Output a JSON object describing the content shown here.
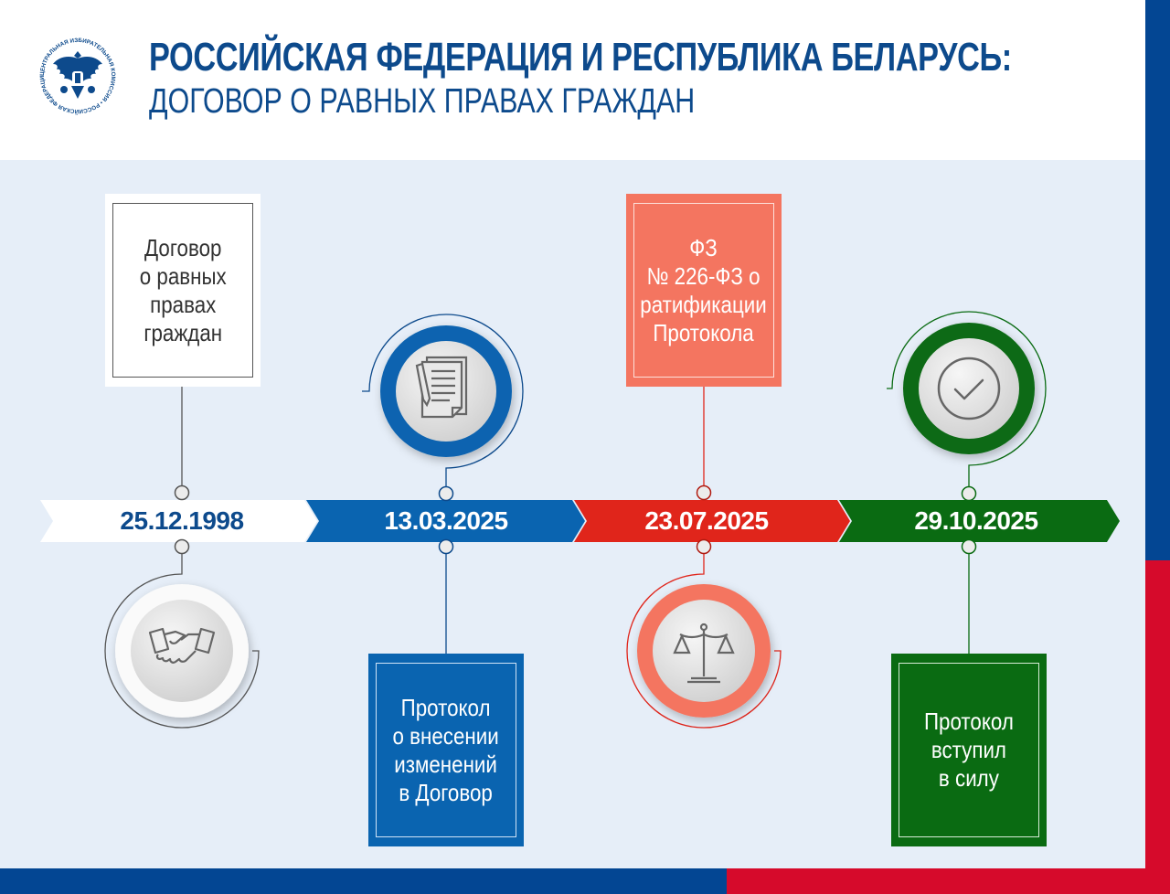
{
  "header": {
    "logo_text": "ЦЕНТРАЛЬНАЯ ИЗБИРАТЕЛЬНАЯ КОМИССИЯ • РОССИЙСКАЯ ФЕДЕРАЦИЯ",
    "title": "РОССИЙСКАЯ ФЕДЕРАЦИЯ И РЕСПУБЛИКА БЕЛАРУСЬ:",
    "subtitle": "ДОГОВОР О РАВНЫХ ПРАВАХ ГРАЖДАН"
  },
  "colors": {
    "navy": "#0d4a8c",
    "blue": "#0a64b0",
    "red": "#e0251b",
    "salmon": "#f47560",
    "green": "#0a6b12",
    "background": "#e6eef8"
  },
  "timeline": [
    {
      "date": "25.12.1998",
      "text": "Договор\nо равных\nправах\nграждан",
      "icon": "handshake-icon"
    },
    {
      "date": "13.03.2025",
      "text": "Протокол\nо внесении\nизменений\nв Договор",
      "icon": "document-pen-icon"
    },
    {
      "date": "23.07.2025",
      "text": "ФЗ\n№ 226-ФЗ о\nратификации\nПротокола",
      "icon": "scales-icon"
    },
    {
      "date": "29.10.2025",
      "text": "Протокол\nвступил\nв силу",
      "icon": "checkmark-icon"
    }
  ]
}
